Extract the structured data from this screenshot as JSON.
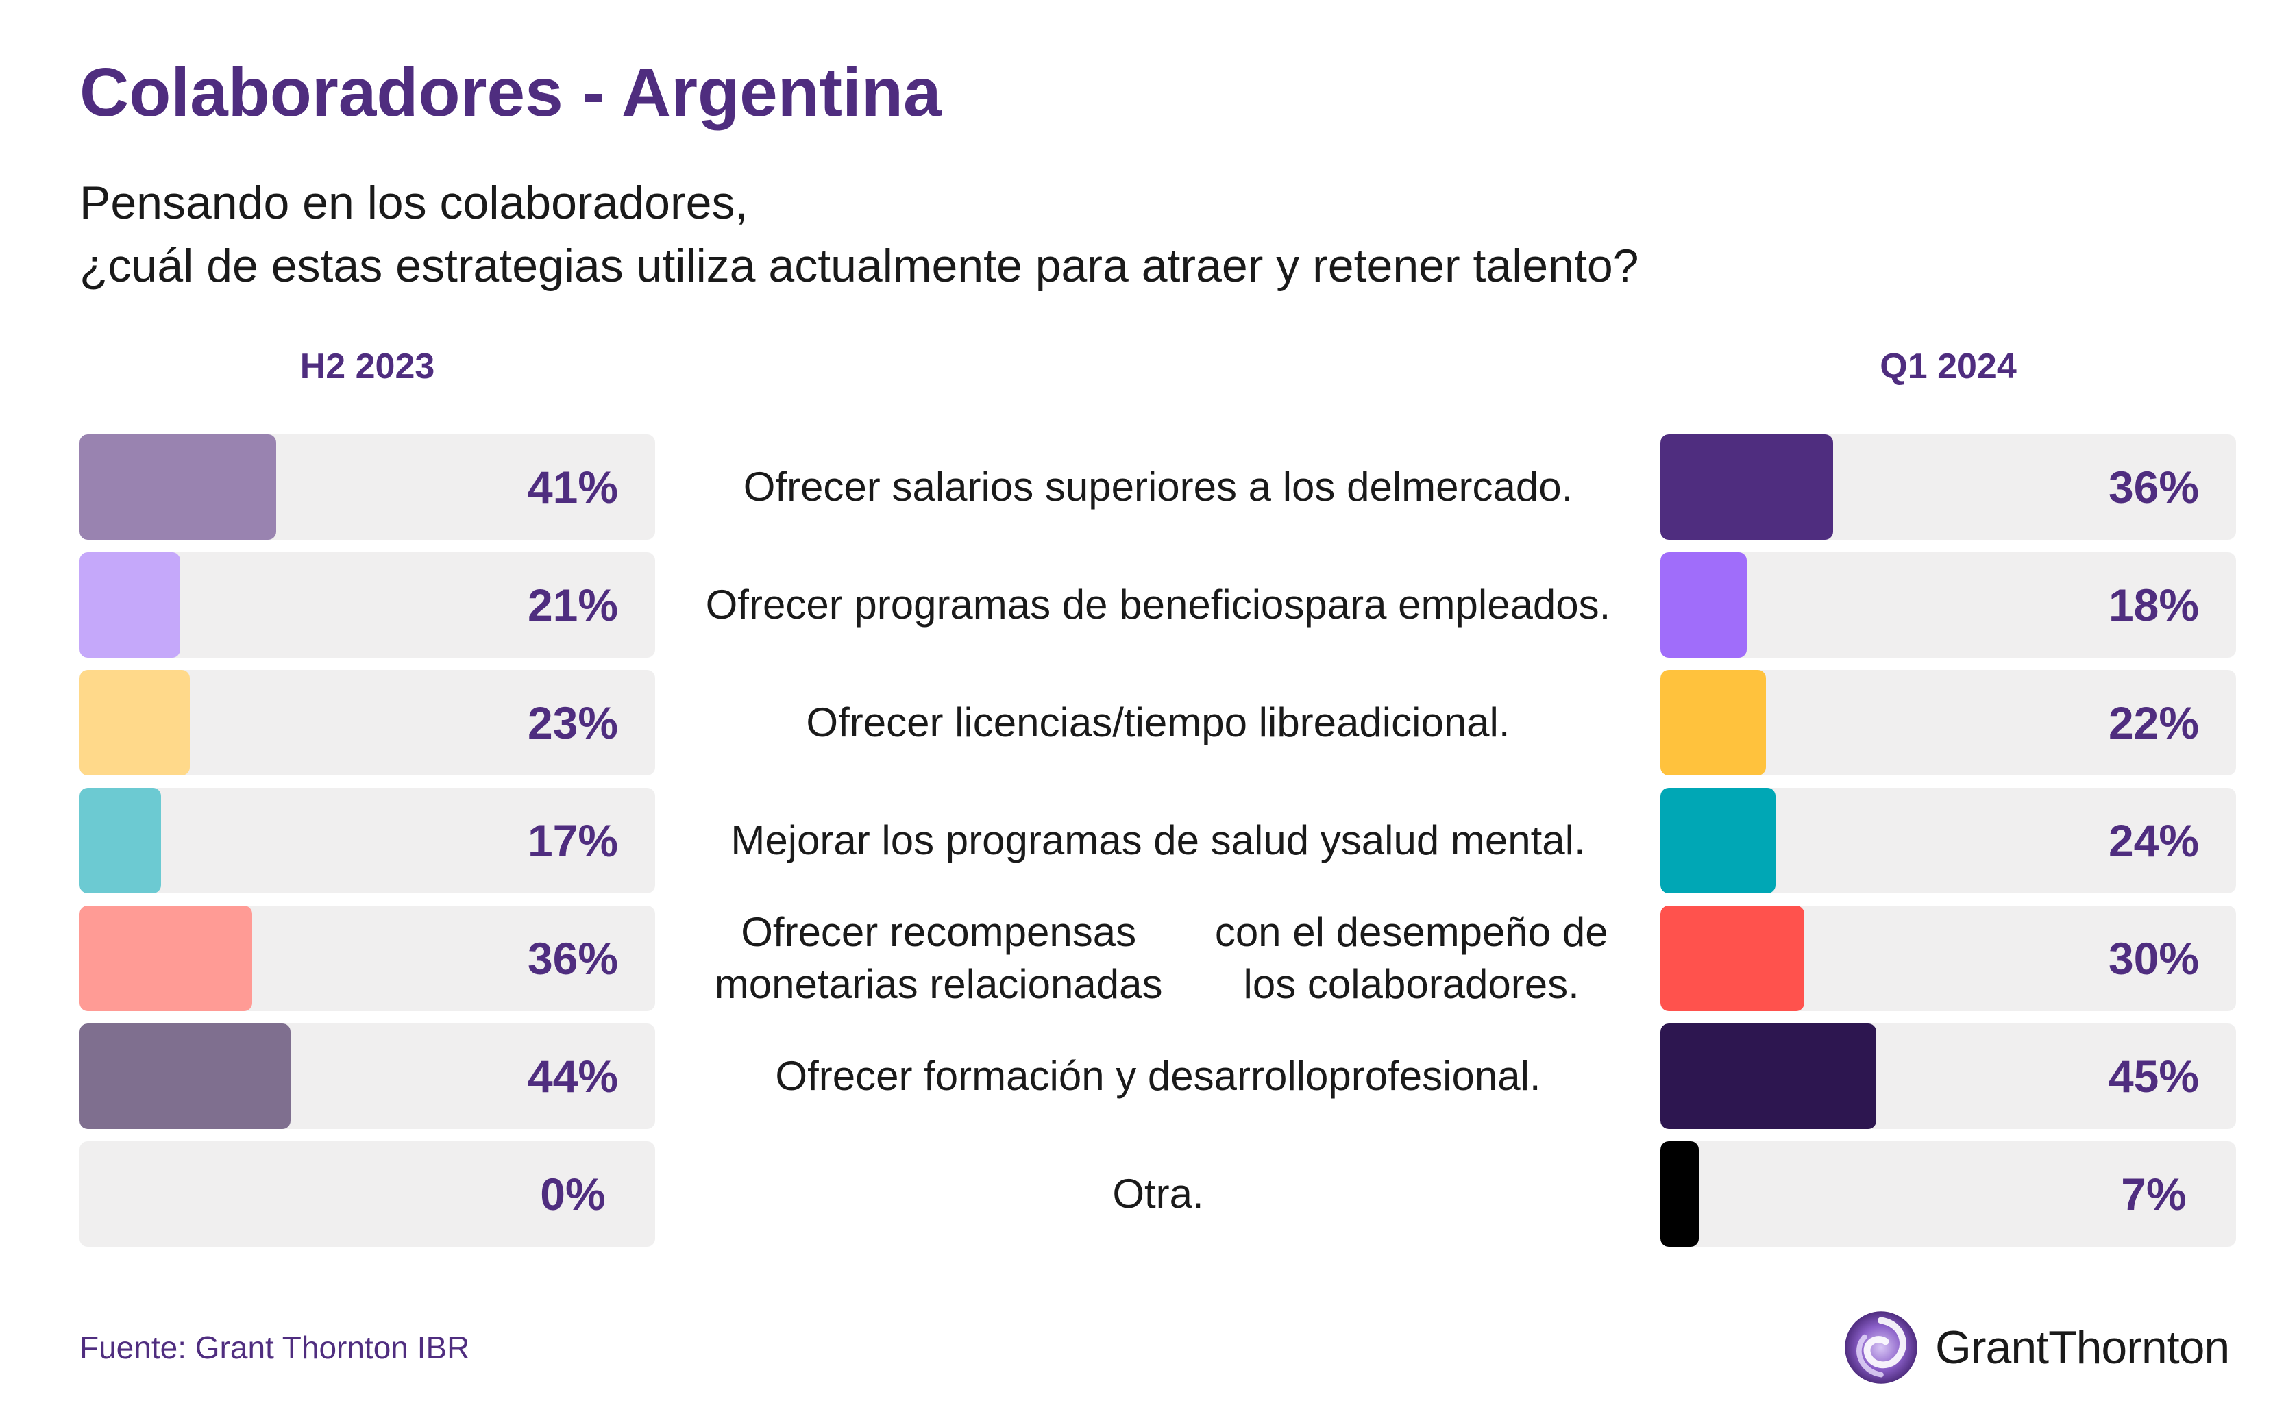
{
  "title": "Colaboradores - Argentina",
  "subtitle": {
    "line1": "Pensando en los colaboradores,",
    "line2": "¿cuál de estas estrategias utiliza actualmente para atraer y retener talento?"
  },
  "source": "Fuente: Grant Thornton IBR",
  "logo": {
    "text": "GrantThornton",
    "icon": "grant-thornton-swirl-icon"
  },
  "chart_data": {
    "type": "bar",
    "orientation": "horizontal",
    "xlim": [
      0,
      100
    ],
    "categories": [
      [
        "Ofrecer salarios superiores a los del",
        "mercado."
      ],
      [
        "Ofrecer programas de beneficios",
        "para empleados."
      ],
      [
        "Ofrecer licencias/tiempo libre",
        "adicional."
      ],
      [
        "Mejorar los programas de salud y",
        "salud mental."
      ],
      [
        "Ofrecer recompensas monetarias relacionadas",
        "con el desempeño de los colaboradores."
      ],
      [
        "Ofrecer formación y desarrollo",
        "profesional."
      ],
      [
        "Otra."
      ]
    ],
    "series": [
      {
        "name": "H2 2023",
        "values": [
          41,
          21,
          23,
          17,
          36,
          44,
          0
        ],
        "labels": [
          "41%",
          "21%",
          "23%",
          "17%",
          "36%",
          "44%",
          "0%"
        ],
        "colors": [
          "#9983b0",
          "#c5a8fa",
          "#ffd98a",
          "#6ccad2",
          "#ff9b95",
          "#7f6f8f",
          "#f0efef"
        ]
      },
      {
        "name": "Q1 2024",
        "values": [
          36,
          18,
          22,
          24,
          30,
          45,
          7
        ],
        "labels": [
          "36%",
          "18%",
          "22%",
          "24%",
          "30%",
          "45%",
          "7%"
        ],
        "colors": [
          "#4f2d7f",
          "#a06dfa",
          "#ffc23d",
          "#00a7b5",
          "#ff524d",
          "#2d1650",
          "#000000"
        ]
      }
    ]
  }
}
